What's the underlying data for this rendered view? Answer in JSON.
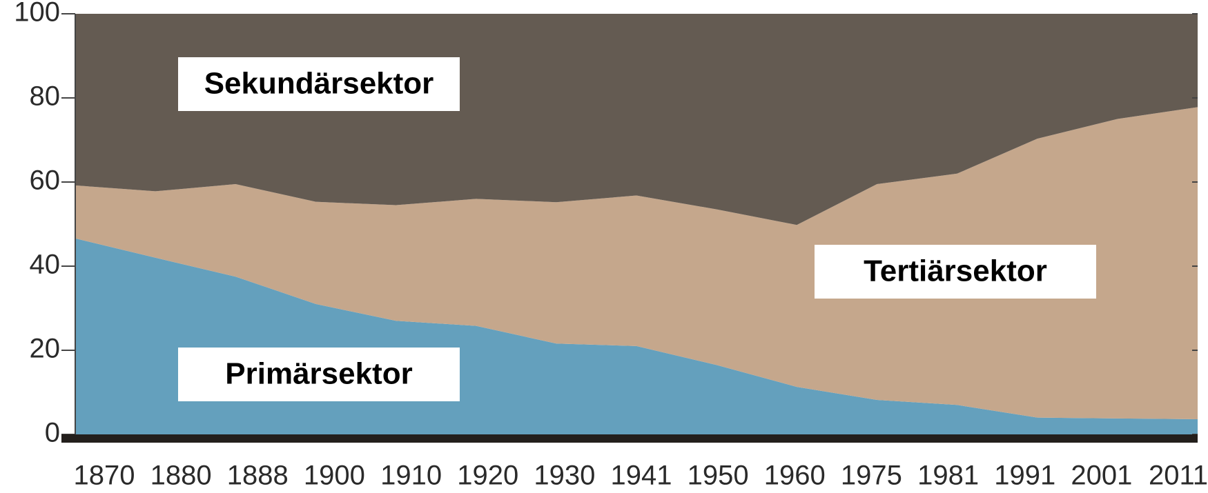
{
  "chart_data": {
    "type": "stacked_area",
    "categories": [
      "1870",
      "1880",
      "1888",
      "1900",
      "1910",
      "1920",
      "1930",
      "1941",
      "1950",
      "1960",
      "1975",
      "1981",
      "1991",
      "2001",
      "2011"
    ],
    "series": [
      {
        "name": "Primärsektor",
        "color": "#64a0bd",
        "values": [
          46.6,
          42,
          37.5,
          31,
          27,
          25.8,
          21.6,
          21,
          16.5,
          11.3,
          8.2,
          7,
          4,
          3.8,
          3.6
        ]
      },
      {
        "name": "Tertiärsektor",
        "color": "#c5a78c",
        "values": [
          12.6,
          15.8,
          22,
          24.3,
          27.5,
          30.2,
          33.6,
          35.8,
          37,
          38.5,
          51.3,
          55,
          66.3,
          71.2,
          74.2
        ]
      },
      {
        "name": "Sekundärsektor",
        "color": "#645b52",
        "values": [
          40.8,
          42.2,
          40.5,
          44.7,
          45.5,
          44,
          44.8,
          43.2,
          46.5,
          50.2,
          40.5,
          38,
          29.7,
          25,
          22.2
        ]
      }
    ],
    "ylim": [
      0,
      100
    ],
    "yticks": [
      0,
      20,
      40,
      60,
      80,
      100
    ]
  }
}
